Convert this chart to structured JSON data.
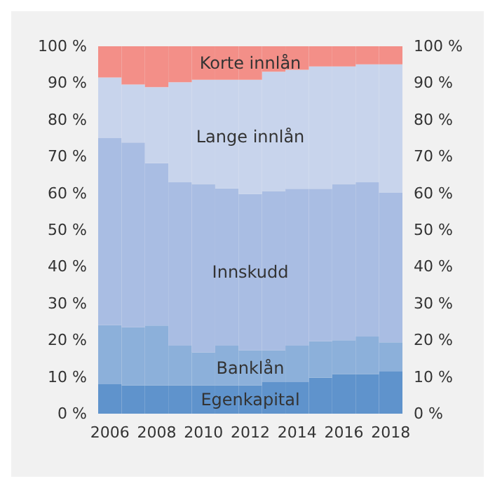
{
  "chart_data": {
    "type": "bar",
    "stacked": true,
    "legend": false,
    "grid": false,
    "categories": [
      "2006",
      null,
      "2008",
      null,
      "2010",
      null,
      "2012",
      null,
      "2014",
      null,
      "2016",
      null,
      "2018"
    ],
    "series": [
      {
        "name": "Egenkapital",
        "color": "#5f93cc",
        "values": [
          8.0,
          7.7,
          7.7,
          7.7,
          7.7,
          7.7,
          7.7,
          8.6,
          8.6,
          9.8,
          10.8,
          10.8,
          11.6
        ]
      },
      {
        "name": "Banklån",
        "color": "#8cb0da",
        "values": [
          16.1,
          15.8,
          16.3,
          10.8,
          9.0,
          10.8,
          9.5,
          8.6,
          9.9,
          9.9,
          9.2,
          10.2,
          7.8
        ]
      },
      {
        "name": "Innskudd",
        "color": "#a9bde3",
        "values": [
          50.9,
          50.3,
          44.2,
          44.5,
          45.8,
          42.8,
          42.6,
          43.4,
          42.7,
          41.5,
          42.5,
          42.0,
          40.7
        ]
      },
      {
        "name": "Lange innlån",
        "color": "#c8d4ec",
        "values": [
          16.5,
          15.8,
          20.7,
          27.2,
          28.4,
          29.6,
          31.1,
          32.5,
          32.4,
          33.3,
          32.0,
          32.1,
          35.0
        ]
      },
      {
        "name": "Korte innlån",
        "color": "#f38f88",
        "values": [
          8.5,
          10.4,
          11.1,
          9.8,
          9.1,
          9.1,
          9.1,
          6.9,
          6.4,
          5.5,
          5.5,
          4.9,
          4.9
        ]
      }
    ],
    "ylim": [
      0,
      100
    ],
    "yticks": [
      {
        "value": 0,
        "label": "0 %"
      },
      {
        "value": 10,
        "label": "10 %"
      },
      {
        "value": 20,
        "label": "20 %"
      },
      {
        "value": 30,
        "label": "30 %"
      },
      {
        "value": 40,
        "label": "40 %"
      },
      {
        "value": 50,
        "label": "50 %"
      },
      {
        "value": 60,
        "label": "60 %"
      },
      {
        "value": 70,
        "label": "70 %"
      },
      {
        "value": 80,
        "label": "80 %"
      },
      {
        "value": 90,
        "label": "90 %"
      },
      {
        "value": 100,
        "label": "100 %"
      }
    ],
    "y2lim": [
      0,
      100
    ],
    "y2ticks": [
      {
        "value": 0,
        "label": "0 %"
      },
      {
        "value": 10,
        "label": "10 %"
      },
      {
        "value": 20,
        "label": "20 %"
      },
      {
        "value": 30,
        "label": "30 %"
      },
      {
        "value": 40,
        "label": "40 %"
      },
      {
        "value": 50,
        "label": "50 %"
      },
      {
        "value": 60,
        "label": "60 %"
      },
      {
        "value": 70,
        "label": "70 %"
      },
      {
        "value": 80,
        "label": "80 %"
      },
      {
        "value": 90,
        "label": "90 %"
      },
      {
        "value": 100,
        "label": "100 %"
      }
    ]
  }
}
